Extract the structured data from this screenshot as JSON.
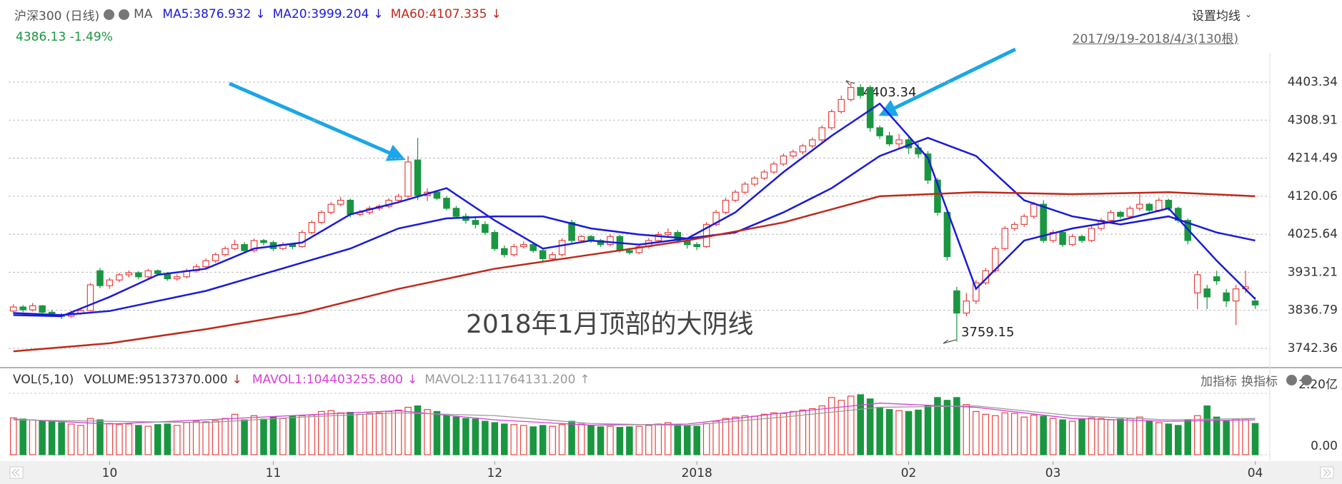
{
  "chart_data": {
    "type": "candlestick",
    "title": "沪深300 (日线)",
    "ma_label": "MA",
    "readout": "4386.13 -1.49%",
    "settings": "设置均线",
    "range": "2017/9/19-2018/4/3(130根)",
    "annotations": [
      "4403.34",
      "3759.15",
      "2018年1月顶部的大阴线"
    ],
    "up_color": "#e8423f",
    "down_color": "#1a9641",
    "xlim": [
      -0.5,
      130
    ],
    "xticks": [
      10,
      {
        "value": 27,
        "label": "11"
      },
      {
        "value": 50,
        "label": "12"
      },
      {
        "value": 71,
        "label": "2018"
      },
      {
        "value": 93,
        "label": "02"
      },
      {
        "value": 108,
        "label": "03"
      },
      {
        "value": 129,
        "label": "04"
      }
    ],
    "ylim": [
      3698,
      4476
    ],
    "yticks": [
      3742.36,
      3836.79,
      3931.21,
      4025.64,
      4120.06,
      4214.49,
      4308.91,
      4403.34
    ],
    "grid": true,
    "candles": [
      [
        3835,
        3852,
        3828,
        3845
      ],
      [
        3845,
        3850,
        3832,
        3838
      ],
      [
        3838,
        3855,
        3834,
        3848
      ],
      [
        3848,
        3850,
        3826,
        3832
      ],
      [
        3832,
        3838,
        3820,
        3826
      ],
      [
        3826,
        3830,
        3815,
        3822
      ],
      [
        3822,
        3836,
        3818,
        3830
      ],
      [
        3830,
        3842,
        3826,
        3836
      ],
      [
        3836,
        3905,
        3834,
        3900
      ],
      [
        3935,
        3942,
        3892,
        3898
      ],
      [
        3898,
        3918,
        3890,
        3912
      ],
      [
        3912,
        3930,
        3906,
        3925
      ],
      [
        3925,
        3936,
        3918,
        3930
      ],
      [
        3930,
        3934,
        3914,
        3920
      ],
      [
        3920,
        3940,
        3916,
        3935
      ],
      [
        3935,
        3938,
        3922,
        3928
      ],
      [
        3928,
        3932,
        3910,
        3915
      ],
      [
        3915,
        3926,
        3910,
        3920
      ],
      [
        3920,
        3940,
        3916,
        3935
      ],
      [
        3935,
        3952,
        3930,
        3945
      ],
      [
        3945,
        3966,
        3940,
        3960
      ],
      [
        3960,
        3980,
        3955,
        3975
      ],
      [
        3975,
        3996,
        3970,
        3990
      ],
      [
        3990,
        4012,
        3986,
        4000
      ],
      [
        4000,
        4006,
        3978,
        3985
      ],
      [
        3985,
        4015,
        3980,
        4010
      ],
      [
        4010,
        4014,
        3998,
        4005
      ],
      [
        4005,
        4010,
        3984,
        3990
      ],
      [
        3990,
        4006,
        3986,
        4000
      ],
      [
        4000,
        4004,
        3988,
        3995
      ],
      [
        3995,
        4036,
        3992,
        4030
      ],
      [
        4030,
        4060,
        4025,
        4055
      ],
      [
        4055,
        4085,
        4050,
        4080
      ],
      [
        4080,
        4106,
        4075,
        4100
      ],
      [
        4100,
        4118,
        4095,
        4110
      ],
      [
        4110,
        4114,
        4068,
        4075
      ],
      [
        4075,
        4086,
        4070,
        4080
      ],
      [
        4080,
        4096,
        4074,
        4090
      ],
      [
        4090,
        4100,
        4084,
        4095
      ],
      [
        4095,
        4115,
        4090,
        4110
      ],
      [
        4110,
        4126,
        4104,
        4120
      ],
      [
        4120,
        4220,
        4115,
        4205
      ],
      [
        4210,
        4265,
        4110,
        4122
      ],
      [
        4122,
        4140,
        4108,
        4130
      ],
      [
        4130,
        4134,
        4110,
        4115
      ],
      [
        4115,
        4120,
        4085,
        4090
      ],
      [
        4090,
        4096,
        4064,
        4070
      ],
      [
        4070,
        4078,
        4052,
        4060
      ],
      [
        4060,
        4066,
        4040,
        4050
      ],
      [
        4050,
        4058,
        4024,
        4030
      ],
      [
        4030,
        4036,
        3984,
        3990
      ],
      [
        3990,
        3998,
        3968,
        3975
      ],
      [
        3975,
        4002,
        3970,
        3995
      ],
      [
        3995,
        4008,
        3990,
        4000
      ],
      [
        4000,
        4004,
        3980,
        3985
      ],
      [
        3985,
        3990,
        3958,
        3965
      ],
      [
        3965,
        3982,
        3960,
        3975
      ],
      [
        3975,
        4016,
        3970,
        4010
      ],
      [
        4055,
        4062,
        4004,
        4010
      ],
      [
        4010,
        4024,
        4005,
        4020
      ],
      [
        4020,
        4024,
        4004,
        4010
      ],
      [
        4010,
        4014,
        3994,
        4000
      ],
      [
        4000,
        4026,
        3996,
        4020
      ],
      [
        4020,
        4024,
        3980,
        3985
      ],
      [
        3985,
        3992,
        3975,
        3980
      ],
      [
        3980,
        4000,
        3976,
        3995
      ],
      [
        3995,
        4016,
        3990,
        4010
      ],
      [
        4010,
        4032,
        4006,
        4025
      ],
      [
        4025,
        4040,
        4020,
        4030
      ],
      [
        4030,
        4036,
        4004,
        4010
      ],
      [
        4010,
        4016,
        3990,
        4000
      ],
      [
        4000,
        4006,
        3986,
        3995
      ],
      [
        3995,
        4056,
        3992,
        4050
      ],
      [
        4050,
        4086,
        4045,
        4080
      ],
      [
        4080,
        4116,
        4075,
        4110
      ],
      [
        4110,
        4136,
        4105,
        4130
      ],
      [
        4130,
        4156,
        4125,
        4150
      ],
      [
        4150,
        4170,
        4144,
        4165
      ],
      [
        4165,
        4186,
        4160,
        4180
      ],
      [
        4180,
        4206,
        4175,
        4200
      ],
      [
        4200,
        4226,
        4195,
        4220
      ],
      [
        4220,
        4236,
        4214,
        4230
      ],
      [
        4230,
        4250,
        4224,
        4245
      ],
      [
        4245,
        4266,
        4240,
        4260
      ],
      [
        4260,
        4296,
        4255,
        4290
      ],
      [
        4290,
        4336,
        4285,
        4330
      ],
      [
        4330,
        4370,
        4325,
        4360
      ],
      [
        4360,
        4403,
        4355,
        4390
      ],
      [
        4390,
        4398,
        4362,
        4370
      ],
      [
        4390,
        4395,
        4280,
        4290
      ],
      [
        4290,
        4296,
        4262,
        4270
      ],
      [
        4270,
        4280,
        4244,
        4250
      ],
      [
        4250,
        4275,
        4240,
        4260
      ],
      [
        4260,
        4270,
        4225,
        4240
      ],
      [
        4240,
        4252,
        4215,
        4225
      ],
      [
        4225,
        4232,
        4150,
        4160
      ],
      [
        4160,
        4166,
        4072,
        4080
      ],
      [
        4080,
        4086,
        3960,
        3970
      ],
      [
        3885,
        3895,
        3759,
        3830
      ],
      [
        3830,
        3880,
        3822,
        3860
      ],
      [
        3860,
        3912,
        3852,
        3905
      ],
      [
        3905,
        3942,
        3900,
        3935
      ],
      [
        3935,
        3996,
        3930,
        3990
      ],
      [
        3990,
        4046,
        3985,
        4040
      ],
      [
        4040,
        4056,
        4034,
        4050
      ],
      [
        4050,
        4076,
        4044,
        4070
      ],
      [
        4070,
        4106,
        4064,
        4100
      ],
      [
        4100,
        4110,
        4004,
        4010
      ],
      [
        4010,
        4036,
        4004,
        4030
      ],
      [
        4030,
        4034,
        3994,
        4000
      ],
      [
        4000,
        4026,
        3996,
        4020
      ],
      [
        4020,
        4024,
        4004,
        4010
      ],
      [
        4010,
        4046,
        4006,
        4040
      ],
      [
        4040,
        4066,
        4034,
        4060
      ],
      [
        4060,
        4086,
        4054,
        4080
      ],
      [
        4080,
        4084,
        4064,
        4070
      ],
      [
        4070,
        4096,
        4064,
        4090
      ],
      [
        4090,
        4126,
        4084,
        4100
      ],
      [
        4100,
        4104,
        4080,
        4085
      ],
      [
        4085,
        4116,
        4080,
        4110
      ],
      [
        4110,
        4114,
        4084,
        4090
      ],
      [
        4090,
        4094,
        4054,
        4060
      ],
      [
        4060,
        4065,
        4000,
        4010
      ],
      [
        3880,
        3935,
        3840,
        3925
      ],
      [
        3890,
        3900,
        3840,
        3870
      ],
      [
        3920,
        3935,
        3900,
        3910
      ],
      [
        3880,
        3890,
        3845,
        3860
      ],
      [
        3860,
        3900,
        3800,
        3890
      ],
      [
        3890,
        3935,
        3880,
        3895
      ],
      [
        3860,
        3870,
        3840,
        3850
      ]
    ],
    "lines": [
      {
        "name": "MA5:3876.932",
        "trend": "↓",
        "color": "#1a1adb",
        "x": [
          0,
          5,
          10,
          15,
          20,
          25,
          30,
          35,
          40,
          45,
          50,
          55,
          60,
          65,
          70,
          75,
          80,
          85,
          90,
          95,
          100,
          105,
          110,
          115,
          120,
          125,
          129
        ],
        "values": [
          3825,
          3822,
          3870,
          3925,
          3940,
          3990,
          4005,
          4075,
          4105,
          4140,
          4060,
          3990,
          4010,
          4000,
          4015,
          4080,
          4180,
          4270,
          4350,
          4215,
          3890,
          4010,
          4040,
          4060,
          4090,
          3960,
          3865
        ]
      },
      {
        "name": "MA20:3999.204",
        "trend": "↓",
        "color": "#1a1adb",
        "x": [
          0,
          5,
          10,
          15,
          20,
          25,
          30,
          35,
          40,
          45,
          50,
          55,
          60,
          65,
          70,
          75,
          80,
          85,
          90,
          95,
          100,
          105,
          110,
          115,
          120,
          125,
          129
        ],
        "values": [
          3830,
          3825,
          3835,
          3860,
          3885,
          3920,
          3955,
          3990,
          4040,
          4065,
          4070,
          4070,
          4040,
          4025,
          4015,
          4030,
          4080,
          4140,
          4220,
          4265,
          4220,
          4110,
          4070,
          4050,
          4070,
          4030,
          4010
        ]
      },
      {
        "name": "MA60:4107.335",
        "trend": "↓",
        "color": "#c0281b",
        "x": [
          0,
          10,
          20,
          30,
          40,
          50,
          60,
          70,
          80,
          90,
          100,
          110,
          120,
          129
        ],
        "values": [
          3735,
          3755,
          3790,
          3830,
          3890,
          3940,
          3975,
          4010,
          4055,
          4120,
          4130,
          4125,
          4130,
          4120
        ]
      }
    ],
    "volume": {
      "title": "VOL(5,10)",
      "label": "VOLUME:95137370.000",
      "trend": "↓",
      "ylim": [
        0,
        2.2
      ],
      "yticks": [
        {
          "value": 0,
          "label": "0.00"
        },
        {
          "value": 2.2,
          "label": "2.20亿"
        }
      ],
      "buttons": [
        "加指标",
        "换指标"
      ],
      "values": [
        1.32,
        1.28,
        1.25,
        1.2,
        1.18,
        1.15,
        1.1,
        1.05,
        1.3,
        1.25,
        1.12,
        1.08,
        1.1,
        1.05,
        1.02,
        1.08,
        1.1,
        1.05,
        1.15,
        1.2,
        1.18,
        1.22,
        1.3,
        1.45,
        1.25,
        1.4,
        1.28,
        1.35,
        1.3,
        1.38,
        1.4,
        1.42,
        1.55,
        1.58,
        1.5,
        1.52,
        1.45,
        1.48,
        1.5,
        1.55,
        1.6,
        1.7,
        1.75,
        1.62,
        1.55,
        1.4,
        1.35,
        1.3,
        1.28,
        1.2,
        1.15,
        1.1,
        1.08,
        1.05,
        1.0,
        1.05,
        1.02,
        1.08,
        1.2,
        1.1,
        1.05,
        1.0,
        1.02,
        0.98,
        1.0,
        1.02,
        1.05,
        1.1,
        1.15,
        1.08,
        1.05,
        1.02,
        1.12,
        1.2,
        1.3,
        1.35,
        1.4,
        1.38,
        1.45,
        1.5,
        1.48,
        1.55,
        1.6,
        1.65,
        1.75,
        2.05,
        1.95,
        2.1,
        2.15,
        2.0,
        1.7,
        1.62,
        1.58,
        1.55,
        1.6,
        1.75,
        2.05,
        1.95,
        2.05,
        1.8,
        1.55,
        1.45,
        1.4,
        1.5,
        1.48,
        1.35,
        1.42,
        1.38,
        1.3,
        1.25,
        1.2,
        1.28,
        1.32,
        1.3,
        1.25,
        1.28,
        1.3,
        1.35,
        1.2,
        1.15,
        1.1,
        1.05,
        1.25,
        1.4,
        1.75,
        1.35,
        1.2,
        1.28,
        1.25,
        1.12
      ],
      "lines": [
        {
          "name": "MAVOL1:104403255.800",
          "trend": "↓",
          "color": "#d63fd6",
          "x": [
            0,
            10,
            20,
            30,
            40,
            50,
            60,
            70,
            80,
            90,
            100,
            110,
            120,
            129
          ],
          "values": [
            1.28,
            1.1,
            1.25,
            1.42,
            1.58,
            1.25,
            1.06,
            1.1,
            1.5,
            1.85,
            1.7,
            1.3,
            1.2,
            1.25
          ]
        },
        {
          "name": "MAVOL2:111764131.200",
          "trend": "↑",
          "color": "#9a9a9a",
          "x": [
            0,
            10,
            20,
            30,
            40,
            50,
            60,
            70,
            80,
            90,
            100,
            110,
            120,
            129
          ],
          "values": [
            1.25,
            1.2,
            1.15,
            1.35,
            1.5,
            1.4,
            1.12,
            1.05,
            1.35,
            1.7,
            1.75,
            1.4,
            1.25,
            1.3
          ]
        }
      ]
    }
  }
}
